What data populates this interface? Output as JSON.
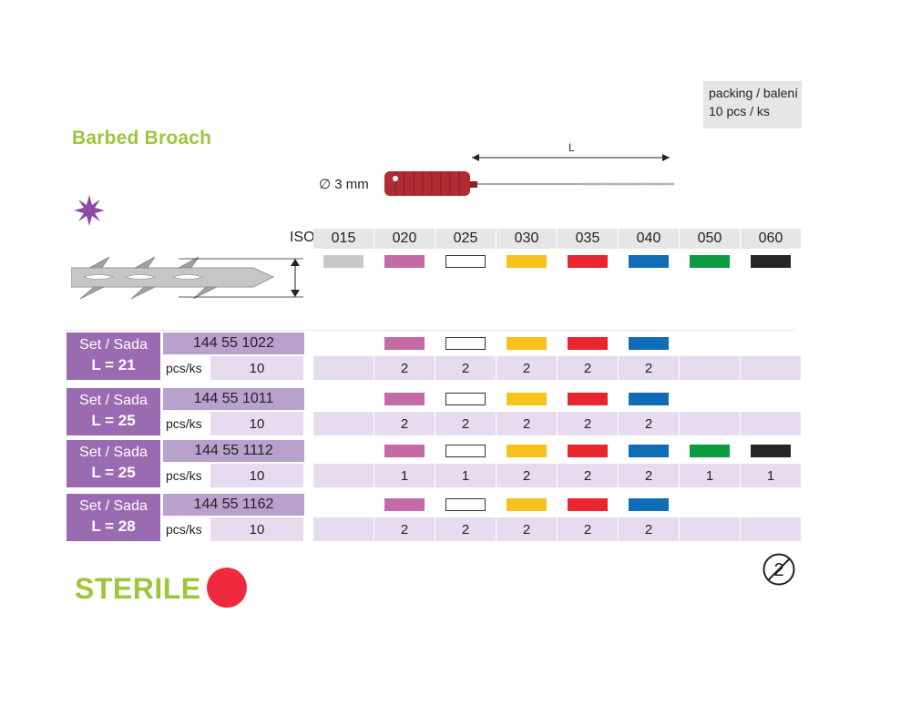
{
  "packing": {
    "line1": "packing / balení",
    "line2": "10 pcs / ks"
  },
  "product": {
    "title": "Barbed Broach"
  },
  "instrument": {
    "length_label": "L",
    "diameter_label": "∅ 3 mm"
  },
  "iso": {
    "label": "ISO",
    "sizes": [
      "015",
      "020",
      "025",
      "030",
      "035",
      "040",
      "050",
      "060"
    ],
    "colors": [
      "#c8c8c8",
      "#c46aa6",
      "#ffffff",
      "#f6c21b",
      "#e7262f",
      "#0f6cb5",
      "#0a9a3f",
      "#262626"
    ]
  },
  "sets": [
    {
      "label": "Set / Sada",
      "length": "L = 21",
      "code": "144 55 1022",
      "unit": "pcs/ks",
      "packs": "10",
      "quantities": [
        "",
        "2",
        "2",
        "2",
        "2",
        "2",
        "",
        ""
      ]
    },
    {
      "label": "Set / Sada",
      "length": "L = 25",
      "code": "144 55 1011",
      "unit": "pcs/ks",
      "packs": "10",
      "quantities": [
        "",
        "2",
        "2",
        "2",
        "2",
        "2",
        "",
        ""
      ]
    },
    {
      "label": "Set / Sada",
      "length": "L = 25",
      "code": "144 55 1112",
      "unit": "pcs/ks",
      "packs": "10",
      "quantities": [
        "",
        "1",
        "1",
        "2",
        "2",
        "2",
        "1",
        "1"
      ]
    },
    {
      "label": "Set / Sada",
      "length": "L = 28",
      "code": "144 55 1162",
      "unit": "pcs/ks",
      "packs": "10",
      "quantities": [
        "",
        "2",
        "2",
        "2",
        "2",
        "2",
        "",
        ""
      ]
    }
  ],
  "sterile": {
    "label": "STERILE",
    "dot_color": "#ee2a3c"
  },
  "icons": {
    "star": "star-icon",
    "single_use": "do-not-reuse-icon"
  }
}
